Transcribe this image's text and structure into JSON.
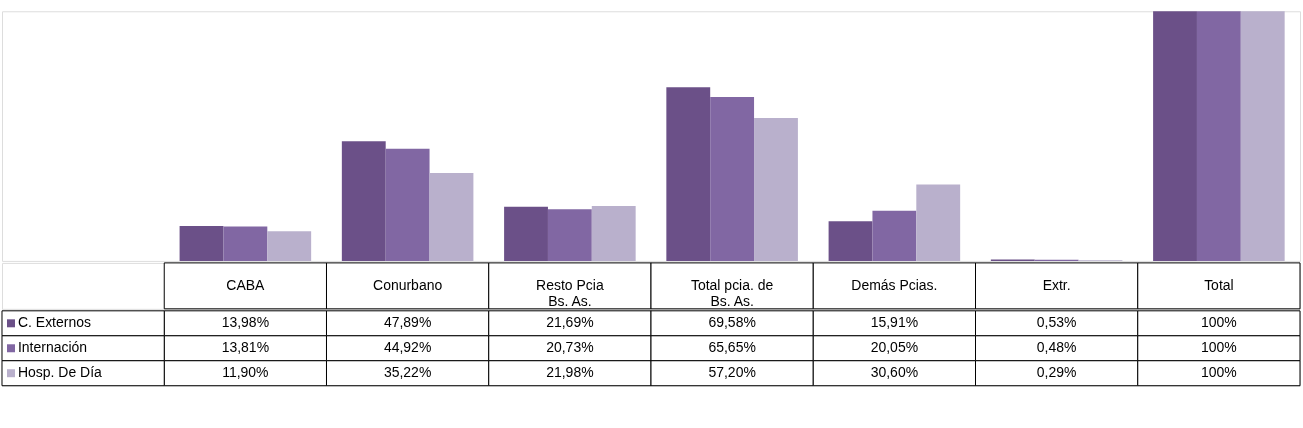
{
  "chart_data": {
    "type": "bar",
    "categories": [
      "CABA",
      "Conurbano",
      "Resto Pcia Bs. As.",
      "Total pcia. de Bs. As.",
      "Demás Pcias.",
      "Extr.",
      "Total"
    ],
    "series": [
      {
        "name": "C. Externos",
        "color": "#6b5088",
        "values": [
          13.98,
          47.89,
          21.69,
          69.58,
          15.91,
          0.53,
          100
        ],
        "value_labels": [
          "13,98%",
          "47,89%",
          "21,69%",
          "69,58%",
          "15,91%",
          "0,53%",
          "100%"
        ]
      },
      {
        "name": "Internación",
        "color": "#8167a3",
        "values": [
          13.81,
          44.92,
          20.73,
          65.65,
          20.05,
          0.48,
          100
        ],
        "value_labels": [
          "13,81%",
          "44,92%",
          "20,73%",
          "65,65%",
          "20,05%",
          "0,48%",
          "100%"
        ]
      },
      {
        "name": "Hosp. De Día",
        "color": "#b9b0cc",
        "values": [
          11.9,
          35.22,
          21.98,
          57.2,
          30.6,
          0.29,
          100
        ],
        "value_labels": [
          "11,90%",
          "35,22%",
          "21,98%",
          "57,20%",
          "30,60%",
          "0,29%",
          "100%"
        ]
      }
    ],
    "legend": "left",
    "grid": false
  }
}
